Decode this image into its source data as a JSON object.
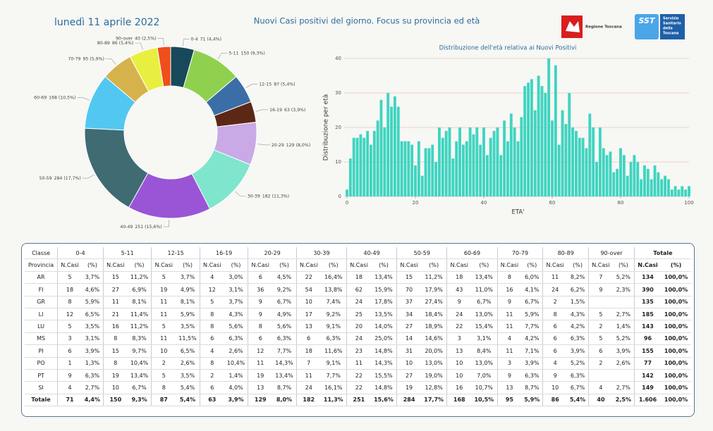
{
  "header": {
    "date": "lunedì 11 aprile 2022",
    "title": "Nuovi Casi positivi del giorno. Focus su provincia ed età",
    "logo_left": "Regione Toscana",
    "logo_right_short": "SST",
    "logo_right": [
      "Servizio",
      "Sanitario",
      "della",
      "Toscana"
    ]
  },
  "chart_data": [
    {
      "type": "donut",
      "categories": [
        "0-4",
        "5-11",
        "12-15",
        "16-19",
        "20-29",
        "30-39",
        "40-49",
        "50-59",
        "60-69",
        "70-79",
        "80-89",
        "90-over"
      ],
      "values": [
        71,
        150,
        87,
        63,
        129,
        182,
        251,
        284,
        168,
        95,
        86,
        40
      ],
      "value_labels": [
        "71 (4,4%)",
        "150 (9,3%)",
        "87 (5,4%)",
        "63 (3,9%)",
        "129 (8,0%)",
        "182 (11,3%)",
        "251 (15,6%)",
        "284 (17,7%)",
        "168 (10,5%)",
        "95 (5,9%)",
        "86 (5,4%)",
        "40 (2,5%)"
      ],
      "colors": [
        "#17495a",
        "#8fd14f",
        "#3b6ea6",
        "#5b2815",
        "#c9a9e6",
        "#7fe5cd",
        "#9a55d6",
        "#3f6b73",
        "#52c8f0",
        "#d6b24c",
        "#e9ef40",
        "#f04e1b"
      ]
    },
    {
      "type": "histogram",
      "title": "Distribuzione dell'età relativa ai Nuovi Positivi",
      "xlabel": "ETA'",
      "ylabel": "Distribuzione per età",
      "color": "#3fd4c1",
      "x": [
        0,
        1,
        2,
        3,
        4,
        5,
        6,
        7,
        8,
        9,
        10,
        11,
        12,
        13,
        14,
        15,
        16,
        17,
        18,
        19,
        20,
        21,
        22,
        23,
        24,
        25,
        26,
        27,
        28,
        29,
        30,
        31,
        32,
        33,
        34,
        35,
        36,
        37,
        38,
        39,
        40,
        41,
        42,
        43,
        44,
        45,
        46,
        47,
        48,
        49,
        50,
        51,
        52,
        53,
        54,
        55,
        56,
        57,
        58,
        59,
        60,
        61,
        62,
        63,
        64,
        65,
        66,
        67,
        68,
        69,
        70,
        71,
        72,
        73,
        74,
        75,
        76,
        77,
        78,
        79,
        80,
        81,
        82,
        83,
        84,
        85,
        86,
        87,
        88,
        89,
        90,
        91,
        92,
        93,
        94,
        95,
        96,
        97,
        98,
        99,
        100
      ],
      "values": [
        2,
        11,
        17,
        17,
        18,
        17,
        19,
        15,
        19,
        22,
        28,
        20,
        30,
        26,
        29,
        26,
        16,
        16,
        16,
        15,
        9,
        16,
        6,
        14,
        14,
        15,
        10,
        20,
        17,
        19,
        20,
        11,
        16,
        20,
        15,
        16,
        20,
        18,
        20,
        15,
        20,
        12,
        17,
        19,
        20,
        12,
        22,
        16,
        24,
        20,
        16,
        23,
        32,
        33,
        34,
        25,
        35,
        32,
        30,
        40,
        22,
        38,
        15,
        25,
        21,
        30,
        20,
        19,
        17,
        17,
        14,
        24,
        20,
        10,
        20,
        14,
        12,
        13,
        7,
        8,
        14,
        12,
        6,
        10,
        12,
        10,
        5,
        9,
        8,
        5,
        9,
        7,
        5,
        6,
        5,
        2,
        3,
        2,
        3,
        2,
        3
      ],
      "xlim": [
        0,
        100
      ],
      "xticks": [
        0,
        20,
        40,
        60,
        80,
        100
      ],
      "ylim": [
        0,
        40
      ],
      "yticks": [
        0,
        10,
        20,
        30,
        40
      ],
      "grid": true
    }
  ],
  "table": {
    "classes": [
      "Classe",
      "0-4",
      "5-11",
      "12-15",
      "16-19",
      "20-29",
      "30-39",
      "40-49",
      "50-59",
      "60-69",
      "70-79",
      "80-89",
      "90-over",
      "Totale"
    ],
    "subheader": [
      "Provincia",
      "N.Casi",
      "(%)",
      "N.Casi",
      "(%)",
      "N.Casi",
      "(%)",
      "N.Casi",
      "(%)",
      "N.Casi",
      "(%)",
      "N.Casi",
      "(%)",
      "N.Casi",
      "(%)",
      "N.Casi",
      "(%)",
      "N.Casi",
      "(%)",
      "N.Casi",
      "(%)",
      "N.Casi",
      "(%)",
      "N.Casi",
      "(%)",
      "N.Casi",
      "(%)"
    ],
    "rows": [
      [
        "AR",
        "5",
        "3,7%",
        "15",
        "11,2%",
        "5",
        "3,7%",
        "4",
        "3,0%",
        "6",
        "4,5%",
        "22",
        "16,4%",
        "18",
        "13,4%",
        "15",
        "11,2%",
        "18",
        "13,4%",
        "8",
        "6,0%",
        "11",
        "8,2%",
        "7",
        "5,2%",
        "134",
        "100,0%"
      ],
      [
        "FI",
        "18",
        "4,6%",
        "27",
        "6,9%",
        "19",
        "4,9%",
        "12",
        "3,1%",
        "36",
        "9,2%",
        "54",
        "13,8%",
        "62",
        "15,9%",
        "70",
        "17,9%",
        "43",
        "11,0%",
        "16",
        "4,1%",
        "24",
        "6,2%",
        "9",
        "2,3%",
        "390",
        "100,0%"
      ],
      [
        "GR",
        "8",
        "5,9%",
        "11",
        "8,1%",
        "11",
        "8,1%",
        "5",
        "3,7%",
        "9",
        "6,7%",
        "10",
        "7,4%",
        "24",
        "17,8%",
        "37",
        "27,4%",
        "9",
        "6,7%",
        "9",
        "6,7%",
        "2",
        "1,5%",
        null,
        null,
        "135",
        "100,0%"
      ],
      [
        "LI",
        "12",
        "6,5%",
        "21",
        "11,4%",
        "11",
        "5,9%",
        "8",
        "4,3%",
        "9",
        "4,9%",
        "17",
        "9,2%",
        "25",
        "13,5%",
        "34",
        "18,4%",
        "24",
        "13,0%",
        "11",
        "5,9%",
        "8",
        "4,3%",
        "5",
        "2,7%",
        "185",
        "100,0%"
      ],
      [
        "LU",
        "5",
        "3,5%",
        "16",
        "11,2%",
        "5",
        "3,5%",
        "8",
        "5,6%",
        "8",
        "5,6%",
        "13",
        "9,1%",
        "20",
        "14,0%",
        "27",
        "18,9%",
        "22",
        "15,4%",
        "11",
        "7,7%",
        "6",
        "4,2%",
        "2",
        "1,4%",
        "143",
        "100,0%"
      ],
      [
        "MS",
        "3",
        "3,1%",
        "8",
        "8,3%",
        "11",
        "11,5%",
        "6",
        "6,3%",
        "6",
        "6,3%",
        "6",
        "6,3%",
        "24",
        "25,0%",
        "14",
        "14,6%",
        "3",
        "3,1%",
        "4",
        "4,2%",
        "6",
        "6,3%",
        "5",
        "5,2%",
        "96",
        "100,0%"
      ],
      [
        "PI",
        "6",
        "3,9%",
        "15",
        "9,7%",
        "10",
        "6,5%",
        "4",
        "2,6%",
        "12",
        "7,7%",
        "18",
        "11,6%",
        "23",
        "14,8%",
        "31",
        "20,0%",
        "13",
        "8,4%",
        "11",
        "7,1%",
        "6",
        "3,9%",
        "6",
        "3,9%",
        "155",
        "100,0%"
      ],
      [
        "PO",
        "1",
        "1,3%",
        "8",
        "10,4%",
        "2",
        "2,6%",
        "8",
        "10,4%",
        "11",
        "14,3%",
        "7",
        "9,1%",
        "11",
        "14,3%",
        "10",
        "13,0%",
        "10",
        "13,0%",
        "3",
        "3,9%",
        "4",
        "5,2%",
        "2",
        "2,6%",
        "77",
        "100,0%"
      ],
      [
        "PT",
        "9",
        "6,3%",
        "19",
        "13,4%",
        "5",
        "3,5%",
        "2",
        "1,4%",
        "19",
        "13,4%",
        "11",
        "7,7%",
        "22",
        "15,5%",
        "27",
        "19,0%",
        "10",
        "7,0%",
        "9",
        "6,3%",
        "9",
        "6,3%",
        null,
        null,
        "142",
        "100,0%"
      ],
      [
        "SI",
        "4",
        "2,7%",
        "10",
        "6,7%",
        "8",
        "5,4%",
        "6",
        "4,0%",
        "13",
        "8,7%",
        "24",
        "16,1%",
        "22",
        "14,8%",
        "19",
        "12,8%",
        "16",
        "10,7%",
        "13",
        "8,7%",
        "10",
        "6,7%",
        "4",
        "2,7%",
        "149",
        "100,0%"
      ],
      [
        "Totale",
        "71",
        "4,4%",
        "150",
        "9,3%",
        "87",
        "5,4%",
        "63",
        "3,9%",
        "129",
        "8,0%",
        "182",
        "11,3%",
        "251",
        "15,6%",
        "284",
        "17,7%",
        "168",
        "10,5%",
        "95",
        "5,9%",
        "86",
        "5,4%",
        "40",
        "2,5%",
        "1.606",
        "100,0%"
      ]
    ]
  }
}
